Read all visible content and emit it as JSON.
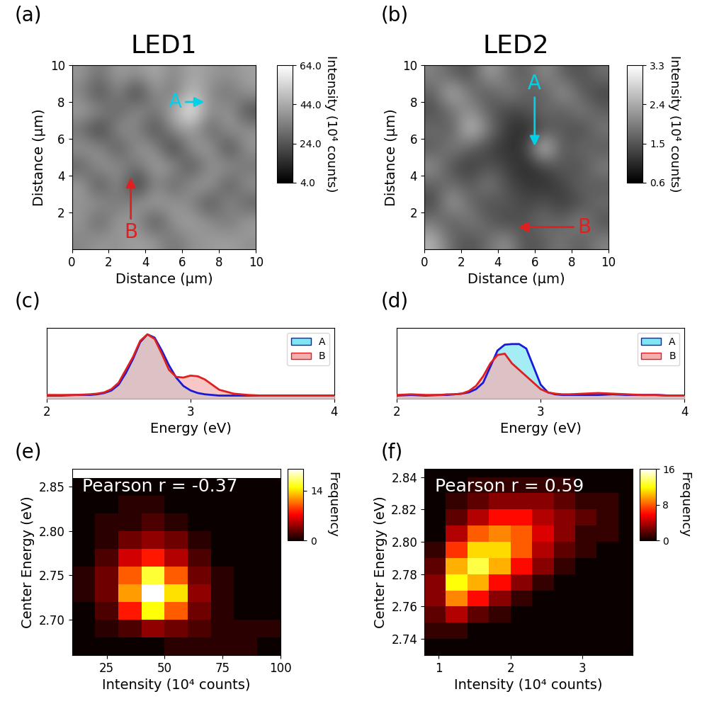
{
  "chart_data": [
    {
      "type": "image",
      "panel": "(a)",
      "title": "LED1",
      "x_label": "Distance (µm)",
      "y_label": "Distance (µm)",
      "xlim": [
        0,
        10
      ],
      "ylim": [
        0,
        10
      ],
      "xticks": [
        0,
        2,
        4,
        6,
        8,
        10
      ],
      "yticks": [
        2,
        4,
        6,
        8,
        10
      ],
      "colorbar_label": "Intensity (10⁴ counts)",
      "clim": [
        4,
        64
      ],
      "cticks": [
        {
          "value": 4,
          "label": "4.0"
        },
        {
          "value": 24,
          "label": "24.0"
        },
        {
          "value": 44,
          "label": "44.0"
        },
        {
          "value": 64,
          "label": "64.0"
        }
      ],
      "cells": [
        [
          40,
          30,
          42,
          38,
          45,
          35,
          44,
          40,
          38,
          42
        ],
        [
          35,
          20,
          38,
          15,
          40,
          30,
          50,
          36,
          30,
          40
        ],
        [
          42,
          38,
          25,
          40,
          30,
          45,
          64,
          35,
          42,
          20
        ],
        [
          30,
          15,
          40,
          35,
          20,
          38,
          42,
          25,
          40,
          38
        ],
        [
          40,
          38,
          22,
          40,
          38,
          15,
          40,
          42,
          18,
          40
        ],
        [
          25,
          40,
          38,
          30,
          42,
          40,
          20,
          38,
          40,
          30
        ],
        [
          42,
          20,
          40,
          12,
          38,
          25,
          40,
          42,
          22,
          40
        ],
        [
          38,
          40,
          30,
          40,
          42,
          40,
          35,
          20,
          40,
          25
        ],
        [
          40,
          25,
          42,
          38,
          20,
          40,
          42,
          38,
          30,
          42
        ],
        [
          35,
          40,
          38,
          42,
          40,
          30,
          38,
          40,
          42,
          38
        ]
      ],
      "annotations": [
        {
          "text": "A",
          "color": "#00d0e8",
          "xy": [
            7.3,
            8.0
          ],
          "xytext": [
            5.6,
            8.0
          ]
        },
        {
          "text": "B",
          "color": "#e02020",
          "xy": [
            3.2,
            4.0
          ],
          "xytext": [
            3.2,
            0.9
          ]
        }
      ]
    },
    {
      "type": "image",
      "panel": "(b)",
      "title": "LED2",
      "x_label": "Distance (µm)",
      "y_label": "Distance (µm)",
      "xlim": [
        0,
        10
      ],
      "ylim": [
        0,
        10
      ],
      "xticks": [
        0,
        2,
        4,
        6,
        8,
        10
      ],
      "yticks": [
        2,
        4,
        6,
        8,
        10
      ],
      "colorbar_label": "Intensity (10⁴ counts)",
      "clim": [
        0.6,
        3.3
      ],
      "cticks": [
        0.6,
        1.5,
        2.4,
        3.3
      ],
      "cells": [
        [
          2.0,
          1.6,
          1.4,
          2.4,
          1.8,
          1.5,
          2.2,
          1.6,
          1.4,
          1.8
        ],
        [
          1.6,
          2.6,
          1.8,
          1.5,
          2.0,
          1.7,
          1.5,
          2.3,
          1.6,
          1.3
        ],
        [
          1.4,
          1.8,
          2.2,
          1.6,
          1.3,
          1.4,
          1.8,
          1.5,
          2.0,
          1.6
        ],
        [
          1.8,
          1.5,
          2.8,
          1.9,
          1.2,
          1.0,
          1.4,
          1.6,
          1.3,
          1.9
        ],
        [
          1.5,
          2.0,
          1.6,
          1.3,
          1.1,
          1.2,
          3.0,
          1.4,
          1.8,
          1.5
        ],
        [
          2.2,
          1.4,
          1.2,
          1.5,
          1.3,
          1.0,
          1.3,
          1.6,
          1.4,
          2.0
        ],
        [
          1.6,
          1.8,
          1.5,
          2.0,
          1.4,
          1.2,
          1.1,
          1.3,
          1.7,
          1.5
        ],
        [
          1.3,
          2.4,
          1.7,
          1.4,
          1.6,
          1.3,
          1.5,
          1.2,
          1.4,
          1.8
        ],
        [
          1.9,
          1.5,
          2.0,
          1.6,
          1.3,
          1.5,
          1.8,
          1.6,
          2.1,
          1.4
        ],
        [
          2.5,
          1.7,
          1.4,
          1.8,
          2.2,
          1.4,
          1.6,
          1.9,
          1.5,
          2.0
        ]
      ],
      "annotations": [
        {
          "text": "A",
          "color": "#00d0e8",
          "xy": [
            6.0,
            5.5
          ],
          "xytext": [
            6.0,
            9.0
          ]
        },
        {
          "text": "B",
          "color": "#e02020",
          "xy": [
            5.0,
            1.2
          ],
          "xytext": [
            8.7,
            1.2
          ]
        }
      ]
    },
    {
      "type": "area",
      "panel": "(c)",
      "x_label": "Energy (eV)",
      "xlim": [
        2,
        4
      ],
      "ylim": [
        0,
        1.1
      ],
      "xticks": [
        2,
        3,
        4
      ],
      "tick_labels": "x",
      "legend": "upper right",
      "x": [
        2.0,
        2.1,
        2.2,
        2.3,
        2.35,
        2.4,
        2.45,
        2.5,
        2.55,
        2.6,
        2.65,
        2.7,
        2.75,
        2.8,
        2.85,
        2.9,
        2.95,
        3.0,
        3.05,
        3.1,
        3.15,
        3.2,
        3.3,
        3.4,
        3.5,
        3.6,
        3.7,
        3.8,
        3.9,
        4.0
      ],
      "series": [
        {
          "name": "A",
          "color": "#7fe6f2",
          "values": [
            0.05,
            0.05,
            0.06,
            0.06,
            0.07,
            0.09,
            0.13,
            0.22,
            0.4,
            0.62,
            0.88,
            1.0,
            0.95,
            0.75,
            0.52,
            0.33,
            0.2,
            0.13,
            0.09,
            0.07,
            0.06,
            0.05,
            0.05,
            0.05,
            0.05,
            0.05,
            0.05,
            0.05,
            0.05,
            0.05
          ]
        },
        {
          "name": "B",
          "color": "#f4b0b0",
          "values": [
            0.06,
            0.06,
            0.06,
            0.07,
            0.08,
            0.1,
            0.15,
            0.25,
            0.45,
            0.65,
            0.9,
            1.0,
            0.93,
            0.7,
            0.45,
            0.34,
            0.33,
            0.36,
            0.35,
            0.3,
            0.22,
            0.14,
            0.08,
            0.06,
            0.05,
            0.05,
            0.05,
            0.05,
            0.05,
            0.05
          ]
        }
      ]
    },
    {
      "type": "area",
      "panel": "(d)",
      "x_label": "Energy (eV)",
      "xlim": [
        2,
        4
      ],
      "ylim": [
        0,
        1.1
      ],
      "xticks": [
        2,
        3,
        4
      ],
      "tick_labels": "x",
      "legend": "upper right",
      "x": [
        2.0,
        2.1,
        2.2,
        2.3,
        2.35,
        2.4,
        2.45,
        2.5,
        2.55,
        2.6,
        2.65,
        2.7,
        2.75,
        2.8,
        2.85,
        2.9,
        2.95,
        3.0,
        3.05,
        3.1,
        3.15,
        3.2,
        3.3,
        3.4,
        3.5,
        3.6,
        3.7,
        3.8,
        3.9,
        4.0
      ],
      "series": [
        {
          "name": "A",
          "color": "#7fe6f2",
          "values": [
            0.05,
            0.06,
            0.05,
            0.06,
            0.06,
            0.07,
            0.08,
            0.1,
            0.15,
            0.25,
            0.5,
            0.75,
            0.84,
            0.85,
            0.85,
            0.78,
            0.5,
            0.22,
            0.1,
            0.07,
            0.06,
            0.06,
            0.06,
            0.06,
            0.07,
            0.06,
            0.06,
            0.06,
            0.05,
            0.05
          ]
        },
        {
          "name": "B",
          "color": "#f4b0b0",
          "values": [
            0.06,
            0.07,
            0.06,
            0.06,
            0.07,
            0.07,
            0.08,
            0.12,
            0.2,
            0.35,
            0.55,
            0.68,
            0.7,
            0.55,
            0.45,
            0.35,
            0.25,
            0.15,
            0.1,
            0.08,
            0.07,
            0.07,
            0.08,
            0.09,
            0.08,
            0.07,
            0.06,
            0.06,
            0.05,
            0.05
          ]
        }
      ]
    },
    {
      "type": "heatmap",
      "panel": "(e)",
      "annotation": "Pearson r = -0.37",
      "x_label": "Intensity (10⁴ counts)",
      "y_label": "Center Energy (eV)",
      "xlim": [
        10,
        100
      ],
      "ylim": [
        2.66,
        2.87
      ],
      "xticks": [
        25,
        50,
        75,
        100
      ],
      "yticks": [
        {
          "value": 2.7,
          "label": "2.70"
        },
        2.75,
        {
          "value": 2.8,
          "label": "2.80"
        },
        2.85
      ],
      "colorbar_label": "Frequency",
      "clim": [
        0,
        20
      ],
      "cticks": [
        0,
        14
      ],
      "xbins": [
        10,
        20,
        30,
        40,
        50,
        60,
        70,
        80,
        90,
        100
      ],
      "ybins": [
        2.66,
        2.68,
        2.7,
        2.72,
        2.74,
        2.76,
        2.78,
        2.8,
        2.82,
        2.84,
        2.86
      ],
      "cells": [
        [
          0,
          0,
          0,
          0,
          1,
          1,
          1,
          1,
          0
        ],
        [
          0,
          1,
          2,
          4,
          3,
          2,
          1,
          1,
          1
        ],
        [
          0,
          2,
          8,
          15,
          10,
          3,
          1,
          0,
          0
        ],
        [
          1,
          3,
          12,
          20,
          14,
          4,
          1,
          0,
          0
        ],
        [
          1,
          3,
          10,
          16,
          10,
          3,
          1,
          0,
          0
        ],
        [
          0,
          2,
          6,
          8,
          5,
          2,
          0,
          0,
          0
        ],
        [
          0,
          1,
          3,
          4,
          3,
          1,
          0,
          0,
          0
        ],
        [
          0,
          1,
          1,
          2,
          1,
          0,
          0,
          0,
          0
        ],
        [
          0,
          0,
          1,
          1,
          0,
          0,
          0,
          0,
          0
        ],
        [
          0,
          0,
          0,
          0,
          0,
          0,
          0,
          0,
          0
        ]
      ]
    },
    {
      "type": "heatmap",
      "panel": "(f)",
      "annotation": "Pearson r = 0.59",
      "x_label": "Intensity (10⁴ counts)",
      "y_label": "Center Energy (eV)",
      "xlim": [
        0.8,
        3.7
      ],
      "ylim": [
        2.73,
        2.845
      ],
      "xticks": [
        1,
        2,
        3
      ],
      "yticks": [
        2.74,
        2.76,
        2.78,
        {
          "value": 2.8,
          "label": "2.80"
        },
        2.82,
        2.84
      ],
      "colorbar_label": "Frequency",
      "clim": [
        0,
        16
      ],
      "cticks": [
        0,
        8,
        16
      ],
      "xbins": [
        0.8,
        1.1,
        1.4,
        1.7,
        2.0,
        2.3,
        2.6,
        2.9,
        3.2,
        3.5,
        3.8
      ],
      "ybins": [
        2.73,
        2.74,
        2.75,
        2.76,
        2.77,
        2.78,
        2.79,
        2.8,
        2.81,
        2.82,
        2.83,
        2.84,
        2.85
      ],
      "cells": [
        [
          0,
          0,
          0,
          0,
          0,
          0,
          0,
          0,
          0,
          0
        ],
        [
          1,
          1,
          0,
          0,
          0,
          0,
          0,
          0,
          0,
          0
        ],
        [
          2,
          4,
          2,
          1,
          0,
          0,
          0,
          0,
          0,
          0
        ],
        [
          3,
          9,
          6,
          3,
          1,
          0,
          0,
          0,
          0,
          0
        ],
        [
          3,
          12,
          10,
          6,
          3,
          1,
          0,
          0,
          0,
          0
        ],
        [
          2,
          10,
          13,
          10,
          6,
          3,
          1,
          0,
          0,
          0
        ],
        [
          1,
          7,
          11,
          11,
          8,
          4,
          2,
          1,
          0,
          0
        ],
        [
          0,
          4,
          8,
          9,
          8,
          5,
          3,
          1,
          1,
          0
        ],
        [
          0,
          2,
          4,
          6,
          6,
          4,
          3,
          2,
          1,
          0
        ],
        [
          0,
          1,
          2,
          3,
          3,
          3,
          2,
          1,
          1,
          0
        ],
        [
          0,
          0,
          1,
          1,
          1,
          1,
          1,
          0,
          0,
          0
        ],
        [
          0,
          0,
          0,
          0,
          0,
          0,
          0,
          0,
          0,
          0
        ]
      ]
    }
  ]
}
